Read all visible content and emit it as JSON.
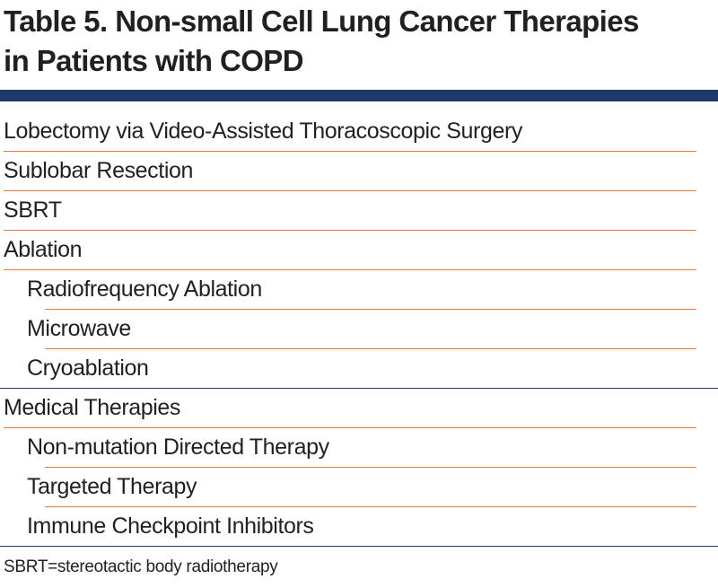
{
  "table": {
    "title_line1": "Table 5. Non-small Cell Lung Cancer Therapies",
    "title_line2": "in Patients with COPD",
    "rows": [
      {
        "label": "Lobectomy via Video-Assisted Thoracoscopic Surgery",
        "level": 0
      },
      {
        "label": "Sublobar Resection",
        "level": 0
      },
      {
        "label": "SBRT",
        "level": 0
      },
      {
        "label": "Ablation",
        "level": 0
      },
      {
        "label": "Radiofrequency Ablation",
        "level": 1
      },
      {
        "label": "Microwave",
        "level": 1
      },
      {
        "label": "Cryoablation",
        "level": 1
      },
      {
        "label": "Medical Therapies",
        "level": 0
      },
      {
        "label": "Non-mutation Directed Therapy",
        "level": 1
      },
      {
        "label": "Targeted Therapy",
        "level": 1
      },
      {
        "label": "Immune Checkpoint Inhibitors",
        "level": 1
      }
    ],
    "footnote": "SBRT=stereotactic body radiotherapy"
  },
  "colors": {
    "title_rule": "#1f3a68",
    "row_separator": "#e8793a",
    "group_separator": "#1f3a68",
    "text": "#231f20"
  }
}
